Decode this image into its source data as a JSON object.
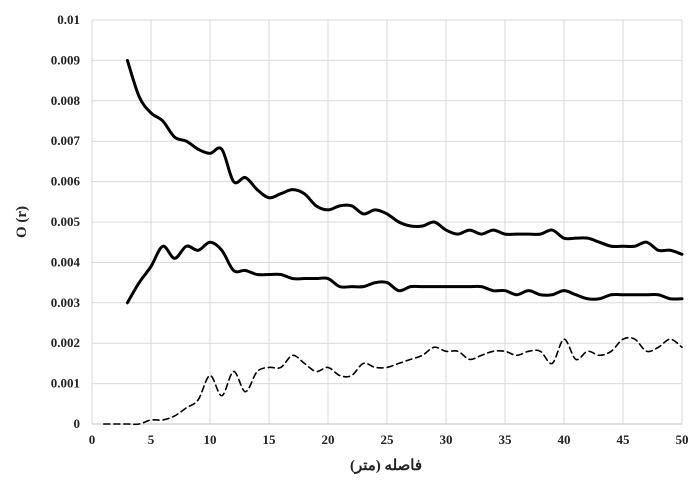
{
  "chart_data": {
    "type": "line",
    "title": "",
    "xlabel": "فاصله (متر)",
    "ylabel": "O (r)",
    "xlim": [
      0,
      50
    ],
    "ylim": [
      0,
      0.01
    ],
    "x_ticks": [
      "0",
      "5",
      "10",
      "15",
      "20",
      "25",
      "30",
      "35",
      "40",
      "45",
      "50"
    ],
    "y_ticks": [
      "0",
      "0.001",
      "0.002",
      "0.003",
      "0.004",
      "0.005",
      "0.006",
      "0.007",
      "0.008",
      "0.009",
      "0.01"
    ],
    "grid": true,
    "legend": "none",
    "series": [
      {
        "style": "solid",
        "color": "#000000",
        "x": [
          3,
          4,
          5,
          6,
          7,
          8,
          9,
          10,
          11,
          12,
          13,
          14,
          15,
          16,
          17,
          18,
          19,
          20,
          21,
          22,
          23,
          24,
          25,
          26,
          27,
          28,
          29,
          30,
          31,
          32,
          33,
          34,
          35,
          36,
          37,
          38,
          39,
          40,
          41,
          42,
          43,
          44,
          45,
          46,
          47,
          48,
          49,
          50
        ],
        "y": [
          0.009,
          0.0081,
          0.0077,
          0.0075,
          0.0071,
          0.007,
          0.0068,
          0.0067,
          0.0068,
          0.006,
          0.0061,
          0.0058,
          0.0056,
          0.0057,
          0.0058,
          0.0057,
          0.0054,
          0.0053,
          0.0054,
          0.0054,
          0.0052,
          0.0053,
          0.0052,
          0.005,
          0.0049,
          0.0049,
          0.005,
          0.0048,
          0.0047,
          0.0048,
          0.0047,
          0.0048,
          0.0047,
          0.0047,
          0.0047,
          0.0047,
          0.0048,
          0.0046,
          0.0046,
          0.0046,
          0.0045,
          0.0044,
          0.0044,
          0.0044,
          0.0045,
          0.0043,
          0.0043,
          0.0042
        ]
      },
      {
        "style": "solid",
        "color": "#000000",
        "x": [
          3,
          4,
          5,
          6,
          7,
          8,
          9,
          10,
          11,
          12,
          13,
          14,
          15,
          16,
          17,
          18,
          19,
          20,
          21,
          22,
          23,
          24,
          25,
          26,
          27,
          28,
          29,
          30,
          31,
          32,
          33,
          34,
          35,
          36,
          37,
          38,
          39,
          40,
          41,
          42,
          43,
          44,
          45,
          46,
          47,
          48,
          49,
          50
        ],
        "y": [
          0.003,
          0.0035,
          0.0039,
          0.0044,
          0.0041,
          0.0044,
          0.0043,
          0.0045,
          0.0043,
          0.0038,
          0.0038,
          0.0037,
          0.0037,
          0.0037,
          0.0036,
          0.0036,
          0.0036,
          0.0036,
          0.0034,
          0.0034,
          0.0034,
          0.0035,
          0.0035,
          0.0033,
          0.0034,
          0.0034,
          0.0034,
          0.0034,
          0.0034,
          0.0034,
          0.0034,
          0.0033,
          0.0033,
          0.0032,
          0.0033,
          0.0032,
          0.0032,
          0.0033,
          0.0032,
          0.0031,
          0.0031,
          0.0032,
          0.0032,
          0.0032,
          0.0032,
          0.0032,
          0.0031,
          0.0031
        ]
      },
      {
        "style": "dashed",
        "color": "#000000",
        "x": [
          1,
          2,
          3,
          4,
          5,
          6,
          7,
          8,
          9,
          10,
          11,
          12,
          13,
          14,
          15,
          16,
          17,
          18,
          19,
          20,
          21,
          22,
          23,
          24,
          25,
          26,
          27,
          28,
          29,
          30,
          31,
          32,
          33,
          34,
          35,
          36,
          37,
          38,
          39,
          40,
          41,
          42,
          43,
          44,
          45,
          46,
          47,
          48,
          49,
          50
        ],
        "y": [
          0,
          0,
          0,
          0,
          0.0001,
          0.0001,
          0.0002,
          0.0004,
          0.0006,
          0.0012,
          0.0007,
          0.0013,
          0.0008,
          0.0013,
          0.0014,
          0.0014,
          0.0017,
          0.0015,
          0.0013,
          0.0014,
          0.0012,
          0.0012,
          0.0015,
          0.0014,
          0.0014,
          0.0015,
          0.0016,
          0.0017,
          0.0019,
          0.0018,
          0.0018,
          0.0016,
          0.0017,
          0.0018,
          0.0018,
          0.0017,
          0.0018,
          0.0018,
          0.0015,
          0.0021,
          0.0016,
          0.0018,
          0.0017,
          0.0018,
          0.0021,
          0.0021,
          0.0018,
          0.0019,
          0.0021,
          0.0019
        ]
      }
    ]
  }
}
